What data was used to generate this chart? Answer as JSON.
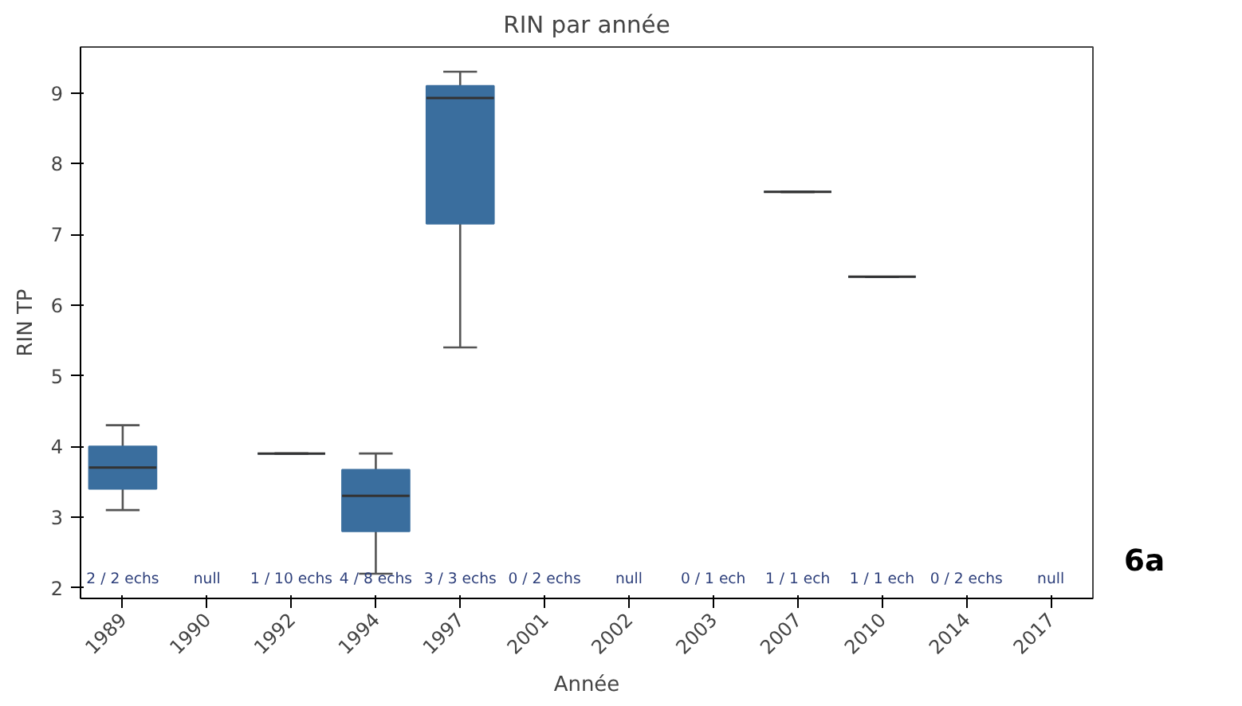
{
  "chart_data": {
    "type": "box",
    "title": "RIN par année",
    "xlabel": "Année",
    "ylabel": "RIN TP",
    "categories": [
      "1989",
      "1990",
      "1992",
      "1994",
      "1997",
      "2001",
      "2002",
      "2003",
      "2007",
      "2010",
      "2014",
      "2017"
    ],
    "color": "#3a6e9e",
    "boxes": [
      {
        "low": 3.1,
        "q1": 3.4,
        "median": 3.7,
        "q3": 4.0,
        "high": 4.3
      },
      null,
      {
        "low": 3.9,
        "q1": 3.9,
        "median": 3.9,
        "q3": 3.9,
        "high": 3.9
      },
      {
        "low": 2.2,
        "q1": 2.8,
        "median": 3.3,
        "q3": 3.67,
        "high": 3.9
      },
      {
        "low": 5.4,
        "q1": 7.15,
        "median": 8.93,
        "q3": 9.1,
        "high": 9.3
      },
      null,
      null,
      null,
      {
        "low": 7.6,
        "q1": 7.6,
        "median": 7.6,
        "q3": 7.6,
        "high": 7.6
      },
      {
        "low": 6.4,
        "q1": 6.4,
        "median": 6.4,
        "q3": 6.4,
        "high": 6.4
      },
      null,
      null
    ],
    "ylim": [
      1.85,
      9.65
    ],
    "yticks": [
      2,
      3,
      4,
      5,
      6,
      7,
      8,
      9
    ],
    "grid": false,
    "annotations": [
      "2 / 2 echs",
      "null",
      "1 / 10 echs",
      "4 / 8 echs",
      "3 / 3 echs",
      "0 / 2 echs",
      "null",
      "0 / 1 ech",
      "1 / 1 ech",
      "1 / 1 ech",
      "0 / 2 echs",
      "null",
      "6a"
    ]
  }
}
